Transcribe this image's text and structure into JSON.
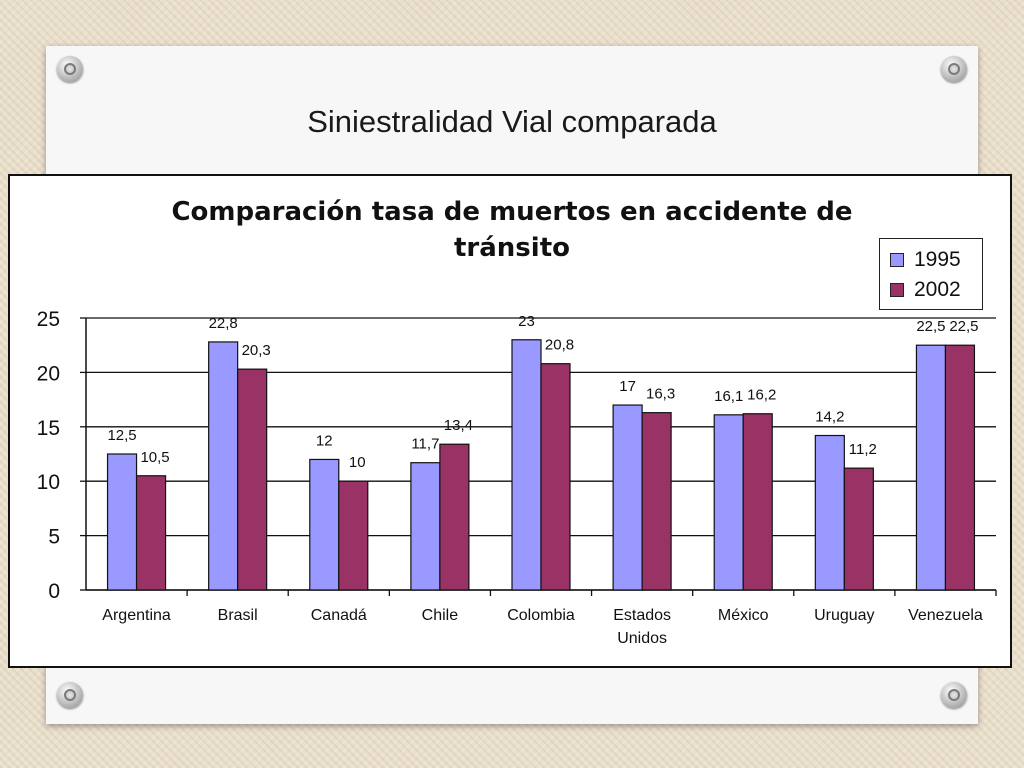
{
  "slide": {
    "title": "Siniestralidad Vial comparada"
  },
  "chart_data": {
    "type": "bar",
    "title": "Comparación tasa de muertos en accidente de tránsito",
    "title_lines": [
      "Comparación tasa de muertos en accidente de",
      "tránsito"
    ],
    "xlabel": "",
    "ylabel": "",
    "ylim": [
      0,
      25
    ],
    "yticks": [
      0,
      5,
      10,
      15,
      20,
      25
    ],
    "grid": true,
    "legend_position": "top-right",
    "categories": [
      "Argentina",
      "Brasil",
      "Canadá",
      "Chile",
      "Colombia",
      "Estados Unidos",
      "México",
      "Uruguay",
      "Venezuela"
    ],
    "category_lines": [
      [
        "Argentina"
      ],
      [
        "Brasil"
      ],
      [
        "Canadá"
      ],
      [
        "Chile"
      ],
      [
        "Colombia"
      ],
      [
        "Estados",
        "Unidos"
      ],
      [
        "México"
      ],
      [
        "Uruguay"
      ],
      [
        "Venezuela"
      ]
    ],
    "series": [
      {
        "name": "1995",
        "color": "#9999ff",
        "values": [
          12.5,
          22.8,
          12,
          11.7,
          23,
          17,
          16.1,
          14.2,
          22.5
        ],
        "labels": [
          "12,5",
          "22,8",
          "12",
          "11,7",
          "23",
          "17",
          "16,1",
          "14,2",
          "22,5"
        ]
      },
      {
        "name": "2002",
        "color": "#993366",
        "values": [
          10.5,
          20.3,
          10,
          13.4,
          20.8,
          16.3,
          16.2,
          11.2,
          22.5
        ],
        "labels": [
          "10,5",
          "20,3",
          "10",
          "13,4",
          "20,8",
          "16,3",
          "16,2",
          "11,2",
          "22,5"
        ]
      }
    ]
  }
}
